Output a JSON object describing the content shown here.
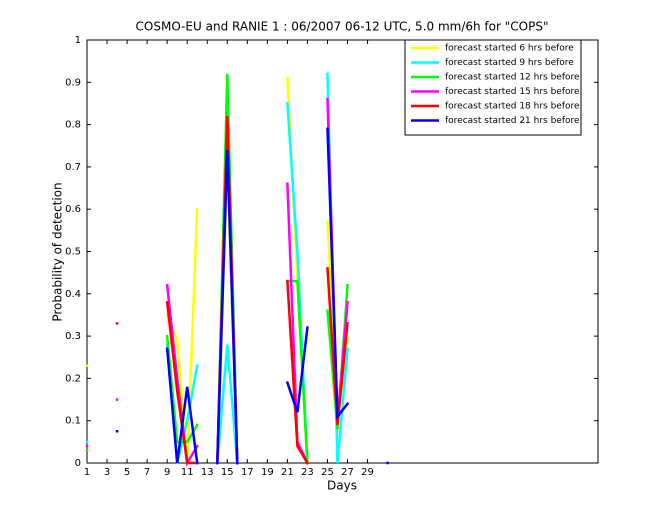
{
  "chart_data": {
    "type": "line",
    "title": "COSMO-EU and RANIE 1 : 06/2007 06-12 UTC, 5.0 mm/6h for \"COPS\"",
    "x_label": "Days",
    "y_label": "Probability of detection",
    "x": [
      1,
      2,
      3,
      4,
      5,
      6,
      7,
      8,
      9,
      10,
      11,
      12,
      13,
      14,
      15,
      16,
      17,
      18,
      19,
      20,
      21,
      22,
      23,
      24,
      25,
      26,
      27,
      28,
      29,
      30,
      31
    ],
    "xlim": [
      1,
      52
    ],
    "xticks": [
      1,
      3,
      5,
      7,
      9,
      11,
      13,
      15,
      17,
      19,
      21,
      23,
      25,
      27,
      29
    ],
    "ylim": [
      0,
      1
    ],
    "yticks": [
      0,
      0.1,
      0.2,
      0.3,
      0.4,
      0.5,
      0.6,
      0.7,
      0.8,
      0.9,
      1
    ],
    "legend": "upper right",
    "series": [
      {
        "name": "forecast started 6 hrs before",
        "color": "#ffff00",
        "values": [
          0.23,
          null,
          null,
          null,
          null,
          null,
          null,
          null,
          0.35,
          0.29,
          0,
          0.6,
          null,
          0,
          0.7,
          0,
          null,
          null,
          null,
          null,
          0.91,
          0.43,
          0,
          null,
          0.57,
          0.1,
          0.3,
          null,
          null,
          null,
          null
        ]
      },
      {
        "name": "forecast started 9 hrs before",
        "color": "#00ffff",
        "values": [
          0.05,
          null,
          null,
          null,
          null,
          null,
          null,
          null,
          0.28,
          0,
          0.1,
          0.23,
          null,
          0,
          0.28,
          0,
          null,
          null,
          null,
          null,
          0.85,
          0.5,
          0,
          null,
          0.92,
          0,
          0.27,
          null,
          null,
          null,
          null
        ]
      },
      {
        "name": "forecast started 12 hrs before",
        "color": "#00ff00",
        "values": [
          0.03,
          null,
          null,
          null,
          null,
          null,
          null,
          null,
          0.3,
          0.05,
          0.05,
          0.09,
          null,
          0,
          0.92,
          0,
          null,
          null,
          null,
          null,
          0.43,
          0.43,
          0,
          null,
          0.36,
          0.08,
          0.42,
          null,
          null,
          null,
          null
        ]
      },
      {
        "name": "forecast started 15 hrs before",
        "color": "#ff00ff",
        "values": [
          0.04,
          null,
          null,
          0.15,
          null,
          null,
          null,
          null,
          0.42,
          0.2,
          0,
          0.04,
          null,
          0,
          0.8,
          0,
          null,
          null,
          null,
          null,
          0.66,
          0.05,
          0,
          null,
          0.86,
          0.1,
          0.38,
          null,
          null,
          null,
          null
        ]
      },
      {
        "name": "forecast started 18 hrs before",
        "color": "#ff0000",
        "values": [
          null,
          null,
          null,
          0.33,
          null,
          null,
          null,
          null,
          0.38,
          0.17,
          0,
          0,
          null,
          0,
          0.82,
          0,
          null,
          null,
          null,
          null,
          0.43,
          0.04,
          0,
          null,
          0.46,
          0.09,
          0.33,
          null,
          null,
          null,
          null
        ]
      },
      {
        "name": "forecast started 21 hrs before",
        "color": "#0000ff",
        "values": [
          null,
          null,
          null,
          0.075,
          null,
          null,
          null,
          null,
          0.27,
          0,
          0.18,
          0,
          null,
          0,
          0.74,
          0,
          null,
          null,
          null,
          null,
          0.19,
          0.12,
          0.32,
          null,
          0.79,
          0.11,
          0.14,
          null,
          null,
          null,
          0
        ]
      }
    ]
  }
}
